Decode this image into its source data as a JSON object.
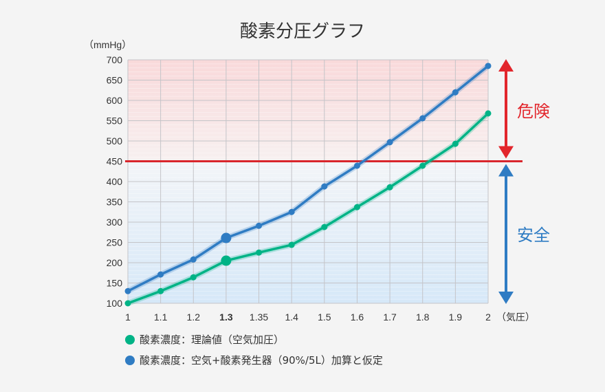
{
  "chart_data": {
    "type": "line",
    "title": "酸素分圧グラフ",
    "ylabel": "（mmHg）",
    "xlabel": "（気圧）",
    "categories": [
      "1",
      "1.1",
      "1.2",
      "1.3",
      "1.35",
      "1.4",
      "1.5",
      "1.6",
      "1.7",
      "1.8",
      "1.9",
      "2"
    ],
    "highlight_category": "1.3",
    "ylim": [
      100,
      700
    ],
    "yticks": [
      100,
      150,
      200,
      250,
      300,
      350,
      400,
      450,
      500,
      550,
      600,
      650,
      700
    ],
    "grid": true,
    "threshold": {
      "value": 450,
      "color": "#d9262c"
    },
    "zones": [
      {
        "label": "危険",
        "color": "#e2262c",
        "range": [
          450,
          700
        ]
      },
      {
        "label": "安全",
        "color": "#2f7cc3",
        "range": [
          100,
          450
        ]
      }
    ],
    "series": [
      {
        "name": "酸素濃度：理論値（空気加圧）",
        "color": "#00b386",
        "values": [
          100,
          130,
          164,
          205,
          225,
          244,
          288,
          337,
          386,
          439,
          493,
          568
        ]
      },
      {
        "name": "酸素濃度：空気+酸素発生器（90%/5L）加算と仮定",
        "color": "#2f7cc3",
        "values": [
          130,
          171,
          208,
          261,
          291,
          325,
          388,
          439,
          497,
          556,
          620,
          685
        ]
      }
    ],
    "legend_position": "bottom-left"
  }
}
